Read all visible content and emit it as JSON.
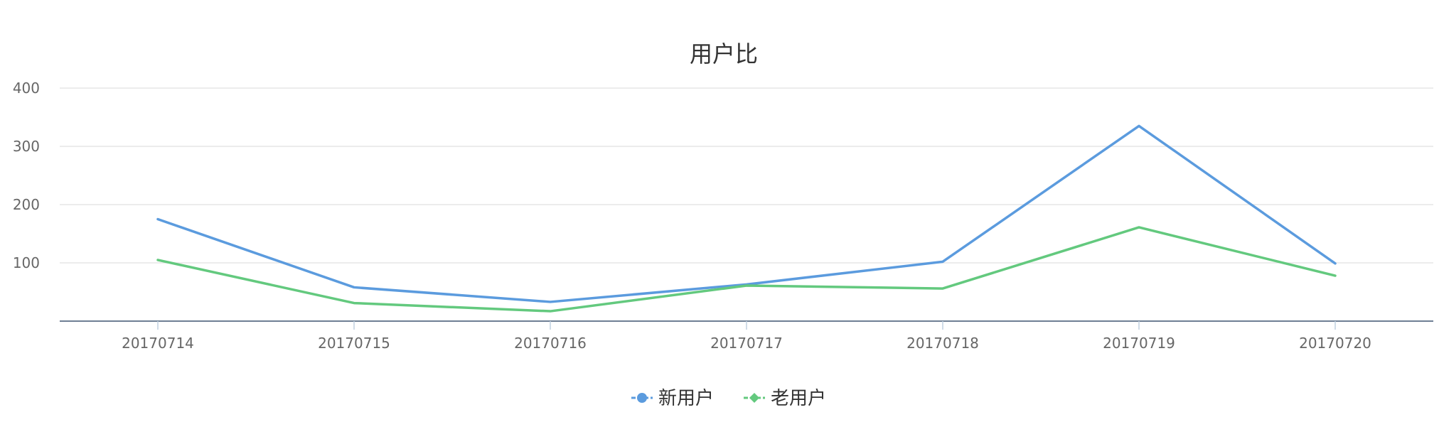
{
  "chart_data": {
    "type": "line",
    "title": "用户比",
    "xlabel": "",
    "ylabel": "",
    "categories": [
      "20170714",
      "20170715",
      "20170716",
      "20170717",
      "20170718",
      "20170719",
      "20170720"
    ],
    "y_ticks": [
      100,
      200,
      300,
      400
    ],
    "ylim": [
      0,
      400
    ],
    "grid": true,
    "legend_position": "bottom-center",
    "series": [
      {
        "name": "新用户",
        "color": "#5b9bde",
        "marker": "circle",
        "values": [
          175,
          58,
          33,
          63,
          102,
          335,
          99
        ]
      },
      {
        "name": "老用户",
        "color": "#63c97e",
        "marker": "diamond",
        "values": [
          105,
          31,
          17,
          61,
          56,
          161,
          78
        ]
      }
    ]
  }
}
